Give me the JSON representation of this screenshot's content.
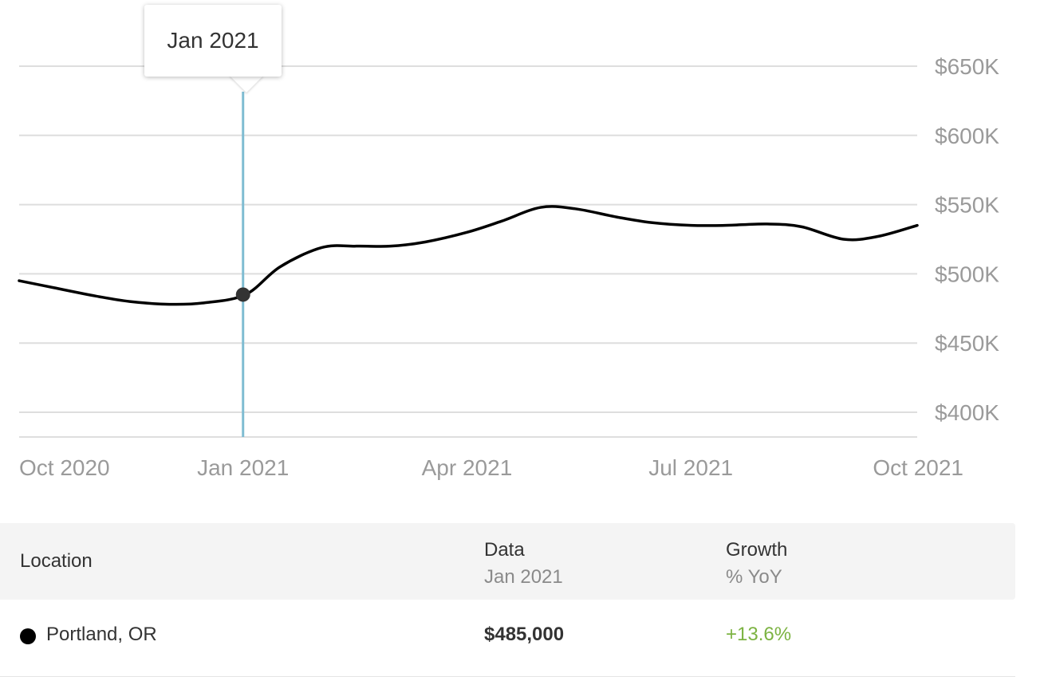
{
  "chart_data": {
    "type": "line",
    "x": [
      "2020-10-01",
      "2020-10-15",
      "2020-11-01",
      "2020-11-15",
      "2020-12-01",
      "2020-12-15",
      "2021-01-01",
      "2021-01-15",
      "2021-02-01",
      "2021-02-15",
      "2021-03-01",
      "2021-03-15",
      "2021-04-01",
      "2021-04-15",
      "2021-05-01",
      "2021-05-15",
      "2021-06-01",
      "2021-06-15",
      "2021-07-01",
      "2021-07-15",
      "2021-08-01",
      "2021-08-15",
      "2021-09-01",
      "2021-09-15",
      "2021-10-01"
    ],
    "series": [
      {
        "values": [
          495000,
          490000,
          484000,
          480000,
          478000,
          479000,
          485000,
          505000,
          519000,
          520000,
          520000,
          523000,
          530000,
          538000,
          548000,
          547000,
          541000,
          537000,
          535000,
          535000,
          536000,
          534000,
          525000,
          527000,
          535000
        ],
        "color": "#000000"
      }
    ],
    "x_ticks": [
      "Oct 2020",
      "Jan 2021",
      "Apr 2021",
      "Jul 2021",
      "Oct 2021"
    ],
    "x_tick_dates": [
      "2020-10-01",
      "2020-12-31",
      "2021-04-01",
      "2021-07-01",
      "2021-10-01"
    ],
    "y_ticks": [
      650000,
      600000,
      550000,
      500000,
      450000,
      400000
    ],
    "y_tick_labels": [
      "$650K",
      "$600K",
      "$550K",
      "$500K",
      "$450K",
      "$400K"
    ],
    "ylim": [
      383000,
      650000
    ],
    "grid": true,
    "y_axis_side": "right",
    "highlight": {
      "date": "2020-12-31",
      "value": 485000,
      "label": "Jan 2021",
      "line_color": "#7fbcd2",
      "dot_color": "#333333"
    }
  },
  "table": {
    "headers": {
      "location": "Location",
      "data": "Data",
      "data_sub": "Jan 2021",
      "growth": "Growth",
      "growth_sub": "% YoY"
    },
    "rows": [
      {
        "dot_color": "#000000",
        "location": "Portland, OR",
        "value": "$485,000",
        "growth": "+13.6%",
        "growth_color": "#7cb342"
      }
    ]
  }
}
